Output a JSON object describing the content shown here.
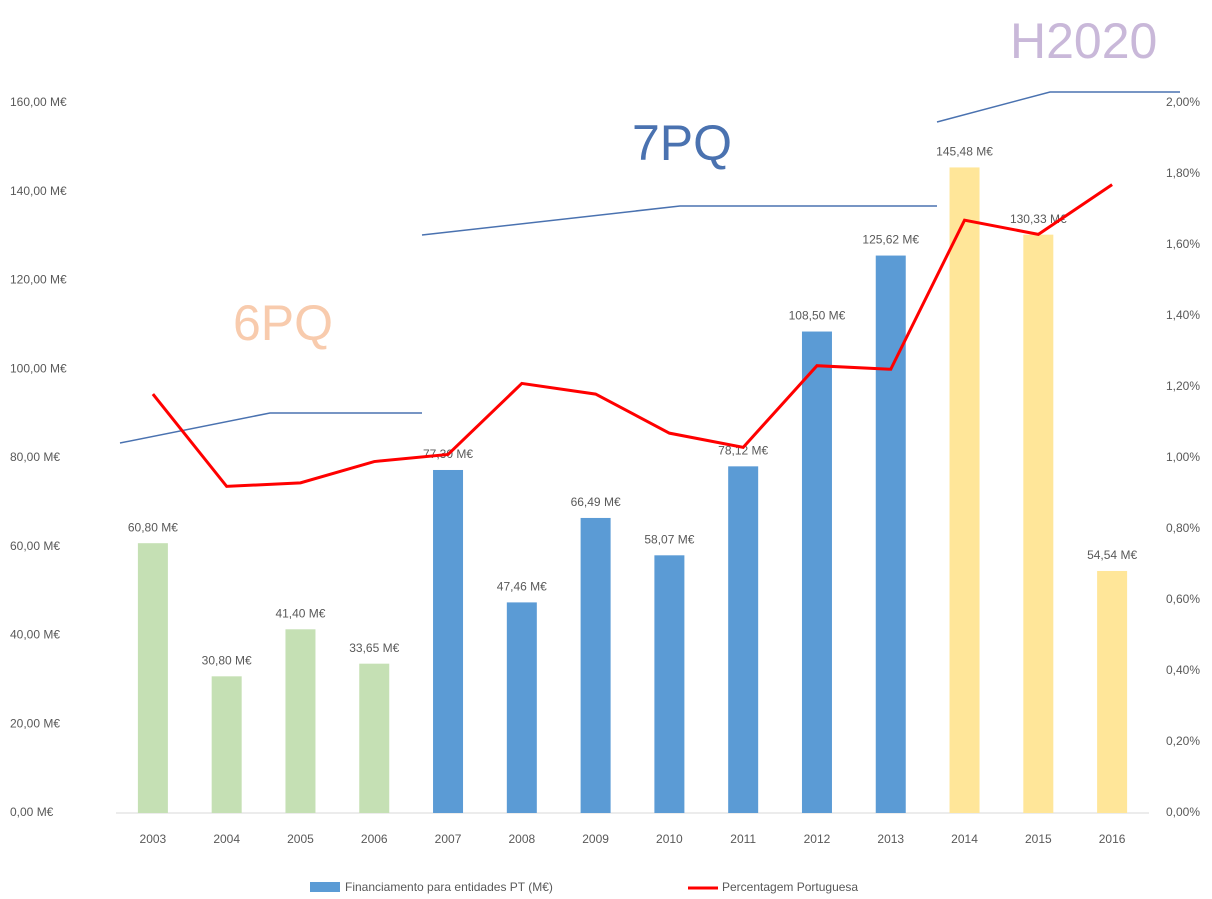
{
  "chart_data": {
    "type": "bar",
    "annotations": [
      "6PQ",
      "7PQ",
      "H2020"
    ],
    "categories": [
      "2003",
      "2004",
      "2005",
      "2006",
      "2007",
      "2008",
      "2009",
      "2010",
      "2011",
      "2012",
      "2013",
      "2014",
      "2015",
      "2016"
    ],
    "series": [
      {
        "name": "Financiamento para entidades PT (M€)",
        "type": "bar",
        "color": "#5b9bd5",
        "colors": [
          "#c5e0b4",
          "#c5e0b4",
          "#c5e0b4",
          "#c5e0b4",
          "#5b9bd5",
          "#5b9bd5",
          "#5b9bd5",
          "#5b9bd5",
          "#5b9bd5",
          "#5b9bd5",
          "#5b9bd5",
          "#ffe699",
          "#ffe699",
          "#ffe699"
        ],
        "values": [
          60.8,
          30.8,
          41.4,
          33.65,
          77.3,
          47.46,
          66.49,
          58.07,
          78.12,
          108.5,
          125.62,
          145.48,
          130.33,
          54.54
        ],
        "value_labels": [
          "60,80 M€",
          "30,80 M€",
          "41,40 M€",
          "33,65 M€",
          "77,30 M€",
          "47,46 M€",
          "66,49 M€",
          "58,07 M€",
          "78,12 M€",
          "108,50 M€",
          "125,62 M€",
          "145,48 M€",
          "130,33 M€",
          "54,54 M€"
        ]
      },
      {
        "name": "Percentagem Portuguesa",
        "type": "line",
        "axis": "y2",
        "color": "#ff0000",
        "values": [
          1.18,
          0.92,
          0.93,
          0.99,
          1.01,
          1.21,
          1.18,
          1.07,
          1.03,
          1.26,
          1.25,
          1.67,
          1.63,
          1.77
        ]
      }
    ],
    "ylim": [
      0,
      160
    ],
    "yticks": [
      {
        "value": 0,
        "label": "0,00 M€"
      },
      {
        "value": 20,
        "label": "20,00 M€"
      },
      {
        "value": 40,
        "label": "40,00 M€"
      },
      {
        "value": 60,
        "label": "60,00 M€"
      },
      {
        "value": 80,
        "label": "80,00 M€"
      },
      {
        "value": 100,
        "label": "100,00 M€"
      },
      {
        "value": 120,
        "label": "120,00 M€"
      },
      {
        "value": 140,
        "label": "140,00 M€"
      },
      {
        "value": 160,
        "label": "160,00 M€"
      }
    ],
    "y2lim": [
      0,
      2
    ],
    "y2ticks": [
      {
        "value": 0,
        "label": "0,00%"
      },
      {
        "value": 0.2,
        "label": "0,20%"
      },
      {
        "value": 0.4,
        "label": "0,40%"
      },
      {
        "value": 0.6,
        "label": "0,60%"
      },
      {
        "value": 0.8,
        "label": "0,80%"
      },
      {
        "value": 1,
        "label": "1,00%"
      },
      {
        "value": 1.2,
        "label": "1,20%"
      },
      {
        "value": 1.4,
        "label": "1,40%"
      },
      {
        "value": 1.6,
        "label": "1,60%"
      },
      {
        "value": 1.8,
        "label": "1,80%"
      },
      {
        "value": 2,
        "label": "2,00%"
      }
    ],
    "grid": false
  }
}
